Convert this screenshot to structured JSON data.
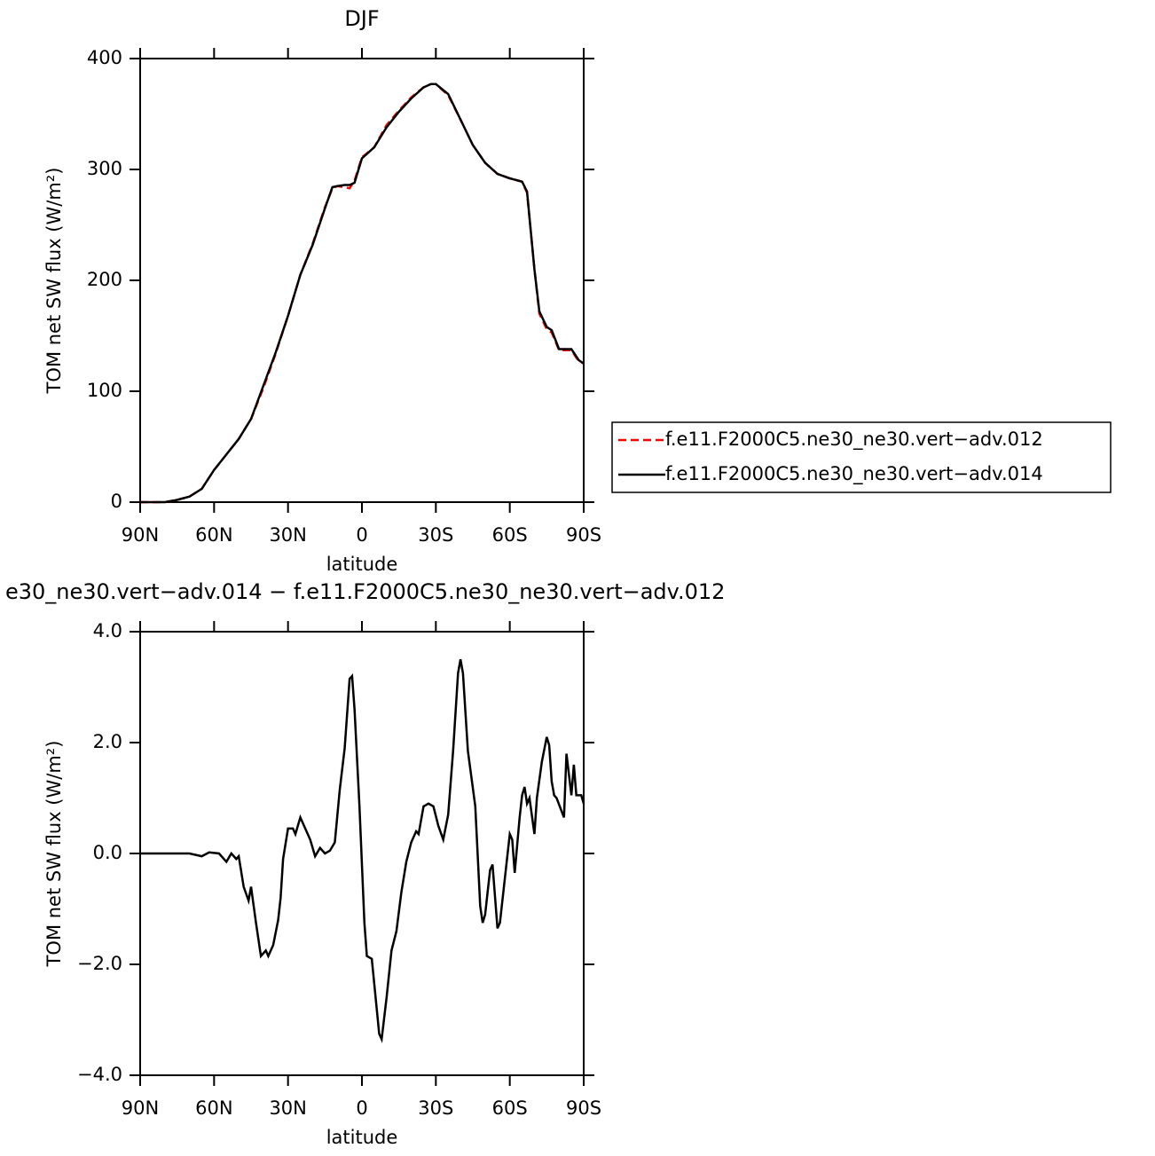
{
  "chart_data": [
    {
      "type": "line",
      "title": "DJF",
      "xlabel": "latitude",
      "ylabel": "TOM net SW flux (W/m²)",
      "x": [
        90,
        85,
        80,
        75,
        70,
        65,
        60,
        55,
        50,
        45,
        40,
        35,
        30,
        25,
        20,
        15,
        12,
        10,
        7,
        5,
        3,
        0,
        -5,
        -10,
        -15,
        -20,
        -25,
        -28,
        -30,
        -35,
        -40,
        -45,
        -50,
        -55,
        -60,
        -65,
        -67,
        -70,
        -72,
        -75,
        -77,
        -80,
        -85,
        -88,
        -90
      ],
      "series": [
        {
          "name": "f.e11.F2000C5.ne30_ne30.vert−adv.012",
          "color": "#ff0000",
          "linestyle": "dashed",
          "values": [
            0,
            0,
            0,
            2,
            5,
            12,
            29,
            43,
            57,
            75,
            103,
            134,
            168,
            205,
            233,
            266,
            283,
            285,
            284,
            283,
            290,
            311,
            320,
            340,
            353,
            365,
            374,
            377,
            377,
            367,
            345,
            322,
            306,
            296,
            292,
            289,
            279,
            210,
            170,
            156,
            153,
            137,
            137,
            127,
            125
          ]
        },
        {
          "name": "f.e11.F2000C5.ne30_ne30.vert−adv.014",
          "color": "#000000",
          "linestyle": "solid",
          "values": [
            0,
            0,
            0,
            2,
            5,
            12,
            29,
            43,
            57,
            75,
            105,
            135,
            168,
            205,
            232,
            265,
            284,
            285,
            286,
            286,
            288,
            310,
            320,
            338,
            352,
            364,
            374,
            377,
            377,
            368,
            345,
            322,
            306,
            296,
            292,
            289,
            280,
            210,
            172,
            158,
            155,
            138,
            138,
            128,
            125
          ]
        }
      ],
      "xlim": [
        90,
        -90
      ],
      "xticks": [
        {
          "value": 90,
          "label": "90N"
        },
        {
          "value": 60,
          "label": "60N"
        },
        {
          "value": 30,
          "label": "30N"
        },
        0,
        {
          "value": -30,
          "label": "30S"
        },
        {
          "value": -60,
          "label": "60S"
        },
        {
          "value": -90,
          "label": "90S"
        }
      ],
      "ylim": [
        0,
        400
      ],
      "yticks": [
        0,
        100,
        200,
        300,
        400
      ]
    },
    {
      "type": "line",
      "title": "e30_ne30.vert−adv.014 − f.e11.F2000C5.ne30_ne30.vert−adv.012",
      "xlabel": "latitude",
      "ylabel": "TOM net SW flux (W/m²)",
      "x": [
        90,
        70,
        65,
        62,
        58,
        55,
        53,
        51,
        50,
        48,
        46,
        45,
        43,
        41,
        40,
        39,
        38,
        36,
        34,
        33,
        32,
        30,
        28,
        27,
        25,
        23,
        21,
        19,
        17,
        15,
        13,
        11,
        9,
        7,
        5,
        4,
        3,
        1,
        -1,
        -2,
        -4,
        -5,
        -7,
        -8,
        -10,
        -12,
        -14,
        -16,
        -18,
        -20,
        -22,
        -23,
        -25,
        -27,
        -29,
        -31,
        -33,
        -35,
        -37,
        -39,
        -40,
        -41,
        -43,
        -46,
        -48,
        -49,
        -50,
        -52,
        -53,
        -55,
        -56,
        -58,
        -60,
        -61,
        -62,
        -64,
        -65,
        -66,
        -67,
        -68,
        -70,
        -71,
        -73,
        -75,
        -76,
        -77,
        -78,
        -79,
        -82,
        -83,
        -85,
        -86,
        -87,
        -89,
        -90
      ],
      "values": [
        0,
        0,
        -0.05,
        0.02,
        0,
        -0.15,
        0,
        -0.1,
        -0.05,
        -0.6,
        -0.85,
        -0.6,
        -1.25,
        -1.85,
        -1.8,
        -1.75,
        -1.85,
        -1.65,
        -1.2,
        -0.8,
        -0.1,
        0.45,
        0.45,
        0.35,
        0.65,
        0.45,
        0.25,
        -0.05,
        0.1,
        0,
        0.05,
        0.2,
        1.15,
        1.9,
        3.15,
        3.2,
        2.6,
        0.85,
        -1.25,
        -1.85,
        -1.9,
        -2.35,
        -3.25,
        -3.35,
        -2.6,
        -1.75,
        -1.4,
        -0.7,
        -0.15,
        0.2,
        0.4,
        0.35,
        0.85,
        0.9,
        0.85,
        0.5,
        0.25,
        0.7,
        1.85,
        3.25,
        3.5,
        3.25,
        1.85,
        0.85,
        -0.95,
        -1.25,
        -1.1,
        -0.3,
        -0.2,
        -1.35,
        -1.25,
        -0.45,
        0.35,
        0.25,
        -0.35,
        0.65,
        1.05,
        1.2,
        0.9,
        1.0,
        0.35,
        1.0,
        1.65,
        2.1,
        1.95,
        1.3,
        1.05,
        1.0,
        0.65,
        1.8,
        1.05,
        1.6,
        1.05,
        1.05,
        0.9
      ],
      "color": "#000000",
      "xlim": [
        90,
        -90
      ],
      "xticks": [
        {
          "value": 90,
          "label": "90N"
        },
        {
          "value": 60,
          "label": "60N"
        },
        {
          "value": 30,
          "label": "30N"
        },
        0,
        {
          "value": -30,
          "label": "30S"
        },
        {
          "value": -60,
          "label": "60S"
        },
        {
          "value": -90,
          "label": "90S"
        }
      ],
      "ylim": [
        -4,
        4
      ],
      "yticks": [
        {
          "value": -4,
          "label": "−4.0"
        },
        {
          "value": -2,
          "label": "−2.0"
        },
        {
          "value": 0,
          "label": "0.0"
        },
        {
          "value": 2,
          "label": "2.0"
        },
        {
          "value": 4,
          "label": "4.0"
        }
      ]
    }
  ]
}
